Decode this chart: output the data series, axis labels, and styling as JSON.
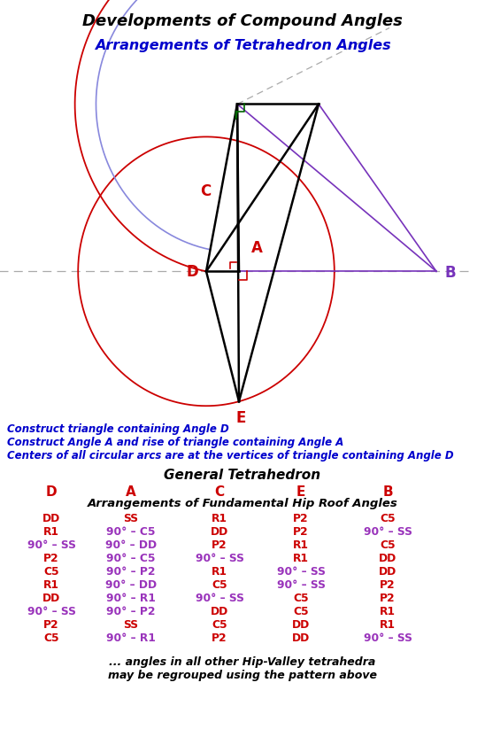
{
  "title1": "Developments of Compound Angles",
  "title2": "Arrangements of Tetrahedron Angles",
  "note_lines": [
    "Construct triangle containing Angle D",
    "Construct Angle A and rise of triangle containing Angle A",
    "Centers of all circular arcs are at the vertices of triangle containing Angle D"
  ],
  "table_title": "General Tetrahedron",
  "col_headers": [
    "D",
    "A",
    "C",
    "E",
    "B"
  ],
  "subtable_title": "Arrangements of Fundamental Hip Roof Angles",
  "table_data": [
    [
      "DD",
      "SS",
      "R1",
      "P2",
      "C5"
    ],
    [
      "R1",
      "90° – C5",
      "DD",
      "P2",
      "90° – SS"
    ],
    [
      "90° – SS",
      "90° – DD",
      "P2",
      "R1",
      "C5"
    ],
    [
      "P2",
      "90° – C5",
      "90° – SS",
      "R1",
      "DD"
    ],
    [
      "C5",
      "90° – P2",
      "R1",
      "90° – SS",
      "DD"
    ],
    [
      "R1",
      "90° – DD",
      "C5",
      "90° – SS",
      "P2"
    ],
    [
      "DD",
      "90° – R1",
      "90° – SS",
      "C5",
      "P2"
    ],
    [
      "90° – SS",
      "90° – P2",
      "DD",
      "C5",
      "R1"
    ],
    [
      "P2",
      "SS",
      "C5",
      "DD",
      "R1"
    ],
    [
      "C5",
      "90° – R1",
      "P2",
      "DD",
      "90° – SS"
    ]
  ],
  "footer_lines": [
    "... angles in all other Hip-Valley tetrahedra",
    "may be regrouped using the pattern above"
  ],
  "bg_color": "#ffffff",
  "red": "#cc0000",
  "blue": "#0000cc",
  "purple": "#7733aa",
  "green": "#006600",
  "darkgray": "#333333"
}
